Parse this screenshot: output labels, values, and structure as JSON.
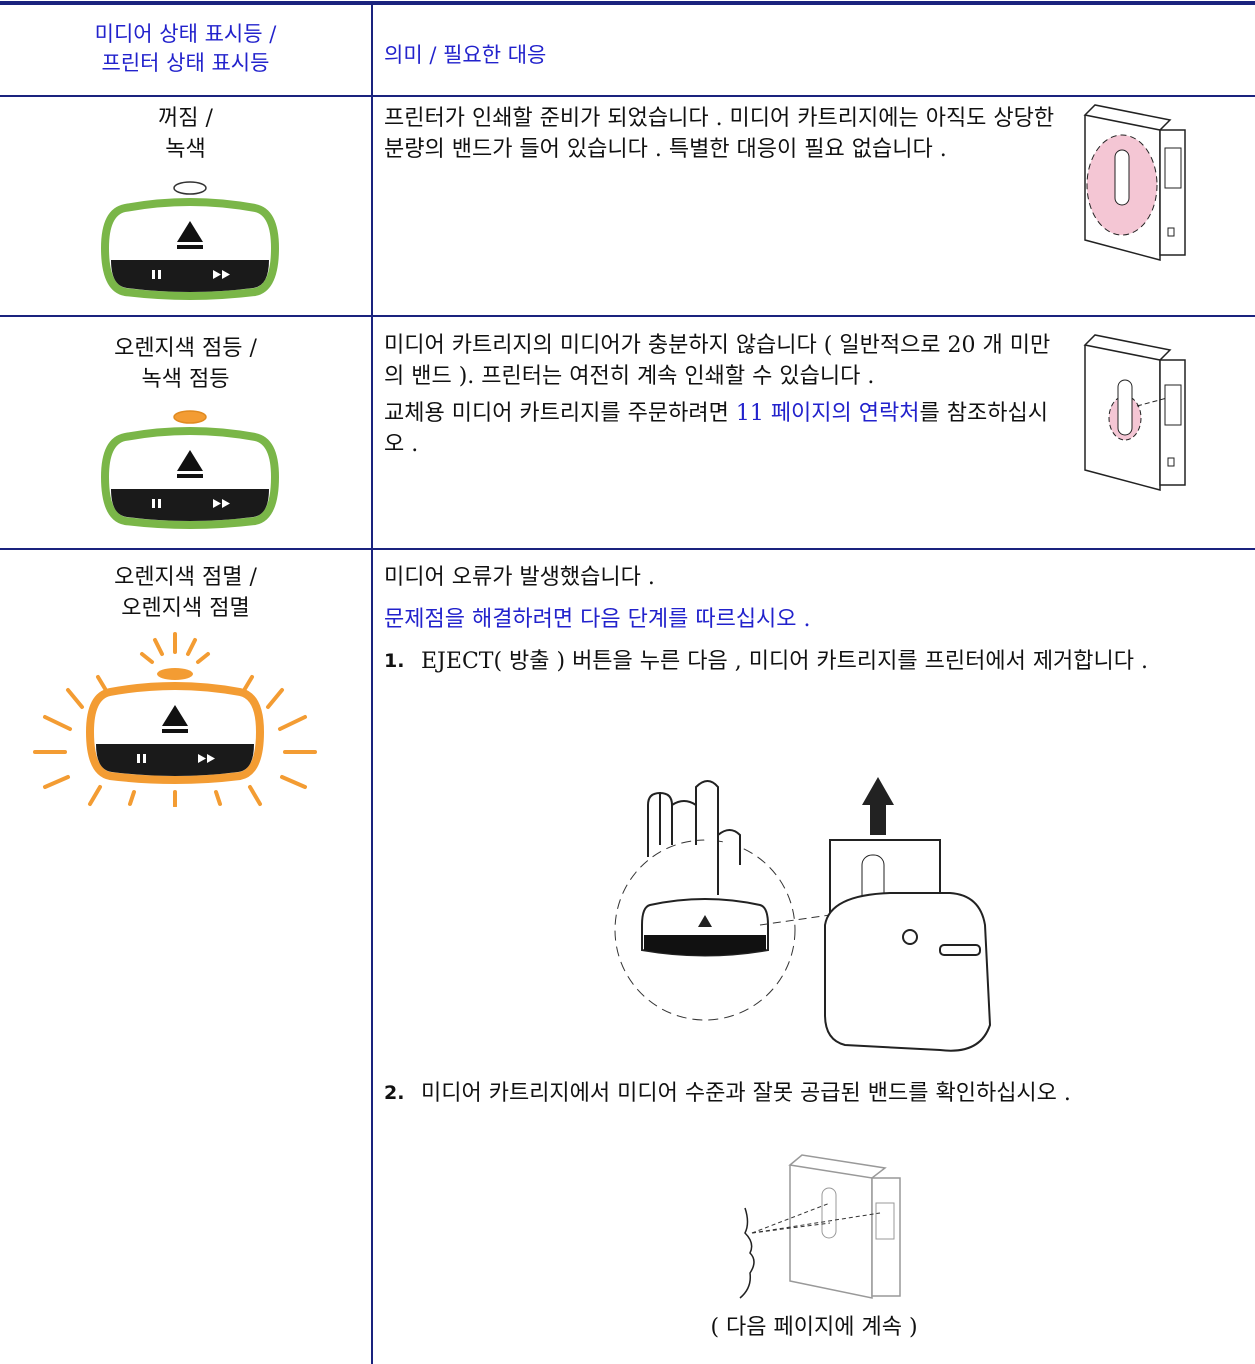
{
  "table": {
    "header": {
      "indicator": [
        "미디어 상태 표시등 /",
        "프린터 상태 표시등"
      ],
      "meaning": "의미 / 필요한 대응"
    },
    "rows": [
      {
        "indicator": [
          "꺼짐 /",
          "녹색"
        ],
        "text": "프린터가 인쇄할 준비가 되었습니다 . 미디어 카트리지에는 아직도 상당한 분량의 밴드가 들어 있습니다 . 특별한 대응이 필요 없습니다 ."
      },
      {
        "indicator": [
          "오렌지색 점등 /",
          "녹색 점등"
        ],
        "text": "미디어 카트리지의 미디어가 충분하지 않습니다 ( 일반적으로 20 개 미만의 밴드 ). 프린터는 여전히 계속 인쇄할 수 있습니다 .",
        "order": [
          "교체용 미디어 카트리지를 주문하려면 ",
          "11 페이지의 연락처",
          "를 참조하십시오 ."
        ]
      },
      {
        "indicator": [
          "오렌지색 점멸 /",
          "오렌지색 점멸"
        ],
        "text": "미디어 오류가 발생했습니다 .",
        "heading": "문제점을 해결하려면 다음 단계를 따르십시오 .",
        "steps": [
          {
            "number": "1.",
            "text": "EJECT( 방출 ) 버튼을 누른 다음 , 미디어 카트리지를 프린터에서 제거합니다 ."
          },
          {
            "number": "2.",
            "text": "미디어 카트리지에서 미디어 수준과 잘못 공급된 밴드를 확인하십시오 ."
          }
        ],
        "continued": "( 다음 페이지에 계속 )"
      }
    ]
  }
}
